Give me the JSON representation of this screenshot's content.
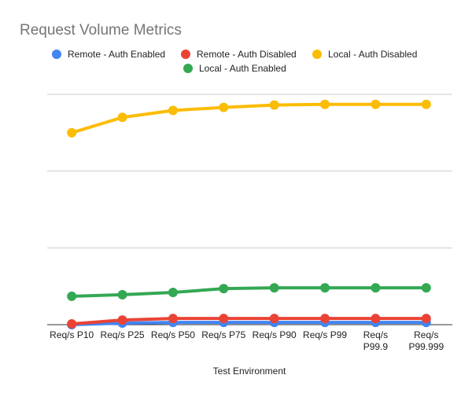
{
  "chart_data": {
    "type": "line",
    "title": "Request Volume Metrics",
    "xlabel": "Test Environment",
    "ylabel": "",
    "categories": [
      [
        "Req/s P10"
      ],
      [
        "Req/s P25"
      ],
      [
        "Req/s P50"
      ],
      [
        "Req/s P75"
      ],
      [
        "Req/s P90"
      ],
      [
        "Req/s P99"
      ],
      [
        "Req/s",
        "P99.9"
      ],
      [
        "Req/s",
        "P99.999"
      ]
    ],
    "ylim": [
      0,
      3
    ],
    "y_tick_labels_shown": false,
    "grid": true,
    "legend_position": "top",
    "series": [
      {
        "name": "Remote - Auth Enabled",
        "color": "#4285f4",
        "values": [
          0.0,
          0.02,
          0.03,
          0.03,
          0.03,
          0.03,
          0.03,
          0.03
        ]
      },
      {
        "name": "Remote - Auth Disabled",
        "color": "#ea4335",
        "values": [
          0.01,
          0.06,
          0.08,
          0.08,
          0.08,
          0.08,
          0.08,
          0.08
        ]
      },
      {
        "name": "Local - Auth Disabled",
        "color": "#fbbc04",
        "values": [
          2.5,
          2.7,
          2.79,
          2.83,
          2.86,
          2.87,
          2.87,
          2.87
        ]
      },
      {
        "name": "Local - Auth Enabled",
        "color": "#34a853",
        "values": [
          0.37,
          0.39,
          0.42,
          0.47,
          0.48,
          0.48,
          0.48,
          0.48
        ]
      }
    ]
  }
}
